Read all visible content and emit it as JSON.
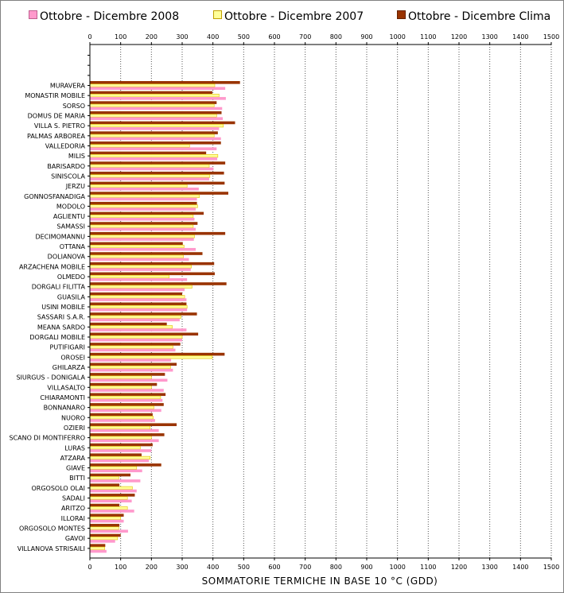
{
  "chart_data": {
    "type": "bar",
    "orientation": "horizontal",
    "title": "",
    "xlabel": "SOMMATORIE TERMICHE IN BASE 10 °C (GDD)",
    "ylabel": "",
    "xlim": [
      0,
      1500
    ],
    "xticks": [
      0,
      100,
      200,
      300,
      400,
      500,
      600,
      700,
      800,
      900,
      1000,
      1100,
      1200,
      1300,
      1400,
      1500
    ],
    "grid": true,
    "legend_position": "top",
    "categories": [
      "MURAVERA",
      "MONASTIR MOBILE",
      "SORSO",
      "DOMUS DE MARIA",
      "VILLA S. PIETRO",
      "PALMAS ARBOREA",
      "VALLEDORIA",
      "MILIS",
      "BARISARDO",
      "SINISCOLA",
      "JERZU",
      "GONNOSFANADIGA",
      "MODOLO",
      "AGLIENTU",
      "SAMASSI",
      "DECIMOMANNU",
      "OTTANA",
      "DOLIANOVA",
      "ARZACHENA MOBILE",
      "OLMEDO",
      "DORGALI FILITTA",
      "GUASILA",
      "USINI MOBILE",
      "SASSARI S.A.R.",
      "MEANA SARDO",
      "DORGALI MOBILE",
      "PUTIFIGARI",
      "OROSEI",
      "GHILARZA",
      "SIURGUS - DONIGALA",
      "VILLASALTO",
      "CHIARAMONTI",
      "BONNANARO",
      "NUORO",
      "OZIERI",
      "SCANO DI MONTIFERRO",
      "LURAS",
      "ATZARA",
      "GIAVE",
      "BITTI",
      "ORGOSOLO OLAI",
      "SADALI",
      "ARITZO",
      "ILLORAI",
      "ORGOSOLO MONTES",
      "GAVOI",
      "VILLANOVA STRISAILI"
    ],
    "series": [
      {
        "name": "Ottobre - Dicembre Clima",
        "color": "#993300",
        "values": [
          488,
          398,
          412,
          428,
          472,
          416,
          426,
          378,
          440,
          436,
          438,
          450,
          348,
          370,
          350,
          440,
          302,
          366,
          404,
          406,
          444,
          300,
          314,
          348,
          250,
          352,
          294,
          438,
          282,
          244,
          218,
          246,
          240,
          204,
          282,
          242,
          204,
          168,
          232,
          132,
          96,
          146,
          96,
          110,
          96,
          100,
          50
        ]
      },
      {
        "name": "Ottobre - Dicembre 2007",
        "color": "#ffff99",
        "stroke": "#e0c000",
        "values": [
          406,
          420,
          404,
          412,
          434,
          404,
          324,
          416,
          388,
          390,
          316,
          356,
          350,
          336,
          336,
          340,
          306,
          304,
          330,
          258,
          332,
          308,
          316,
          296,
          268,
          300,
          270,
          398,
          262,
          200,
          200,
          230,
          208,
          206,
          196,
          200,
          164,
          196,
          152,
          94,
          138,
          122,
          122,
          100,
          94,
          90,
          48
        ]
      },
      {
        "name": "Ottobre - Dicembre 2008",
        "color": "#ff99cc",
        "values": [
          440,
          442,
          430,
          432,
          420,
          426,
          412,
          414,
          402,
          388,
          354,
          348,
          344,
          340,
          344,
          338,
          344,
          322,
          328,
          316,
          308,
          314,
          316,
          292,
          314,
          300,
          278,
          264,
          270,
          252,
          240,
          236,
          232,
          212,
          224,
          224,
          200,
          192,
          170,
          164,
          152,
          136,
          144,
          110,
          124,
          82,
          54
        ]
      }
    ]
  },
  "legend": [
    {
      "label": "Ottobre - Dicembre 2008",
      "color": "#ff99cc",
      "border": "#c06090"
    },
    {
      "label": "Ottobre - Dicembre 2007",
      "color": "#ffff99",
      "border": "#c0a000"
    },
    {
      "label": "Ottobre - Dicembre Clima",
      "color": "#993300",
      "border": "#662200"
    }
  ]
}
